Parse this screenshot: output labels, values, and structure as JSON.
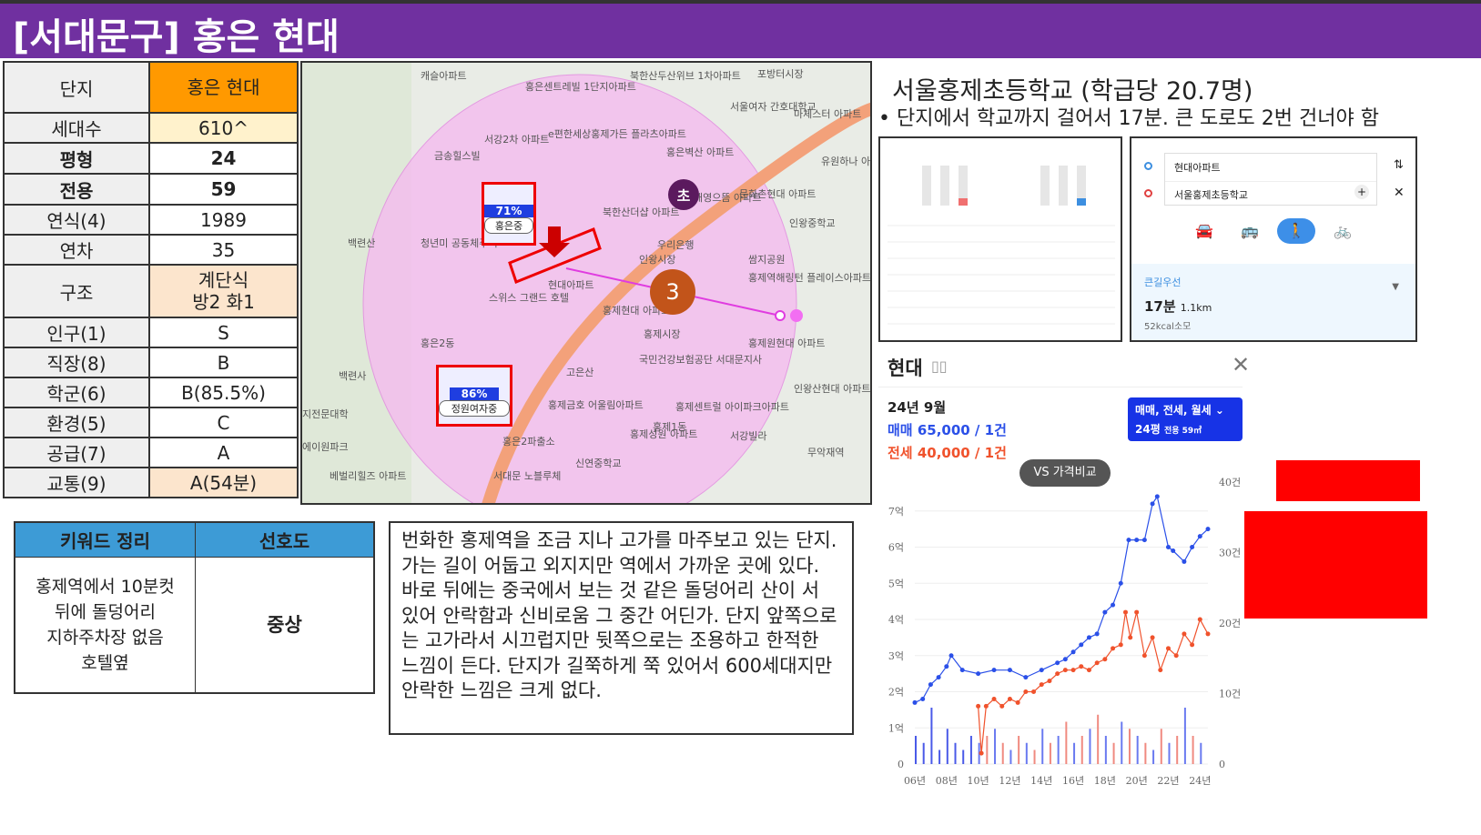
{
  "title": "[서대문구] 홍은 현대",
  "info_table": [
    {
      "label": "단지",
      "value": "홍은 현대",
      "bg": "#ff9900"
    },
    {
      "label": "세대수",
      "value": "610^",
      "bg": "#fff2cc"
    },
    {
      "label": "평형",
      "value": "24",
      "bold": true
    },
    {
      "label": "전용",
      "value": "59",
      "bold": true
    },
    {
      "label": "연식(4)",
      "value": "1989"
    },
    {
      "label": "연차",
      "value": "35"
    },
    {
      "label": "구조",
      "value": "계단식\n방2 화1",
      "bg": "#fce5cd"
    },
    {
      "label": "인구(1)",
      "value": "S"
    },
    {
      "label": "직장(8)",
      "value": "B"
    },
    {
      "label": "학군(6)",
      "value": "B(85.5%)"
    },
    {
      "label": "환경(5)",
      "value": "C"
    },
    {
      "label": "공급(7)",
      "value": "A"
    },
    {
      "label": "교통(9)",
      "value": "A(54분)",
      "bg": "#fce5cd"
    }
  ],
  "map": {
    "labels": [
      "캐슬아파트",
      "홍은센트레빌 1단지아파트",
      "북한산두산위브 1차아파트",
      "포방터시장",
      "서울여자 간호대학교",
      "마체스터 아파트",
      "금송힐스빌",
      "서강2차 아파트",
      "e편한세상홍제가든 플라츠아파트",
      "홍은벽산 아파트",
      "유원하나 아파트",
      "백련산",
      "청년미 공동체주택",
      "북한산더샵 아파트",
      "태영으뜸 아파트",
      "문화촌현대 아파트",
      "인왕중학교",
      "현대아파트",
      "스위스 그랜드 호텔",
      "우리은행",
      "인왕시장",
      "쌈지공원",
      "홍제역해링턴 플레이스아파트",
      "홍제현대 아파트",
      "홍제시장",
      "홍은2동",
      "홍제원현대 아파트",
      "국민건강보험공단 서대문지사",
      "고은산",
      "백련사",
      "인왕산현대 아파트",
      "홍제금호 어울림아파트",
      "홍제센트럴 아이파크아파트",
      "홍제성원 아파트",
      "홍제1동",
      "서강빌라",
      "무악재역",
      "홍은2파출소",
      "신연중학교",
      "서대문 노블루체",
      "베벌리힐즈 아파트",
      "지전문대학",
      "에이원파크"
    ],
    "school_markers": [
      {
        "pct": "71%",
        "name": "홍은중"
      },
      {
        "pct": "86%",
        "name": "정원여자중"
      }
    ],
    "elementary_marker": "초",
    "cluster_count": "3"
  },
  "keywords": {
    "header_left": "키워드 정리",
    "header_right": "선호도",
    "content": "홍제역에서 10분컷\n뒤에 돌덩어리\n지하주차장 없음\n호텔옆",
    "preference": "중상"
  },
  "description": "번화한 홍제역을 조금 지나 고가를 마주보고 있는 단지. 가는 길이 어둡고 외지지만 역에서 가까운 곳에 있다. 바로 뒤에는 중국에서 보는 것 같은 돌덩어리 산이 서 있어 안락함과 신비로움 그 중간 어딘가. 단지 앞쪽으로는 고가라서 시끄럽지만 뒷쪽으로는 조용하고 한적한 느낌이 든다. 단지가 길쭉하게 쭉 있어서 600세대지만 안락한 느낌은 크게 없다.",
  "school": {
    "title": "서울홍제초등학교 (학급당 20.7명)",
    "note": "단지에서 학교까지 걸어서 17분. 큰 도로도 2번 건너야 함"
  },
  "route": {
    "from": "현대아파트",
    "to": "서울홍제초등학교",
    "option": "큰길우선",
    "time": "17분",
    "distance": "1.1km",
    "kcal": "52kcal소모",
    "active_mode": "walk"
  },
  "price_panel": {
    "name": "현대",
    "date": "24년 9월",
    "sale": "매매 65,000 / 1건",
    "jeonse": "전세 40,000 / 1건",
    "filter": "매매, 전세, 월세",
    "size": "24평",
    "area": "전용 59㎡",
    "compare": "VS 가격비교",
    "sale_color": "#2b50e8",
    "jeonse_color": "#f0522c"
  },
  "chart_data": {
    "type": "line",
    "x_ticks": [
      "06년",
      "08년",
      "10년",
      "12년",
      "14년",
      "16년",
      "18년",
      "20년",
      "22년",
      "24년"
    ],
    "y_ticks": [
      "0",
      "1억",
      "2억",
      "3억",
      "4억",
      "5억",
      "6억",
      "7억"
    ],
    "y2_ticks": [
      "0",
      "10건",
      "20건",
      "30건",
      "40건"
    ],
    "ylim": [
      0,
      7.8
    ],
    "y2lim": [
      0,
      40
    ],
    "series": [
      {
        "x": [
          2006,
          2006.5,
          2007,
          2007.5,
          2008,
          2008.3,
          2009,
          2010,
          2011,
          2012,
          2013,
          2014,
          2015,
          2015.5,
          2016,
          2016.5,
          2017,
          2017.5,
          2018,
          2018.5,
          2019,
          2019.5,
          2020,
          2020.5,
          2021,
          2021.3,
          2022,
          2022.3,
          2023,
          2023.5,
          2024,
          2024.5
        ],
        "y": [
          1.7,
          1.8,
          2.2,
          2.4,
          2.7,
          3.0,
          2.6,
          2.5,
          2.6,
          2.6,
          2.4,
          2.6,
          2.8,
          2.9,
          3.1,
          3.3,
          3.5,
          3.6,
          4.2,
          4.4,
          5.0,
          6.2,
          6.2,
          6.2,
          7.2,
          7.4,
          6.0,
          5.9,
          5.6,
          6.0,
          6.3,
          6.5
        ],
        "color": "#2b50e8"
      },
      {
        "x": [
          2010,
          2010.2,
          2010.5,
          2011,
          2011.5,
          2012,
          2012.5,
          2013,
          2013.5,
          2014,
          2014.5,
          2015,
          2015.5,
          2016,
          2016.5,
          2017,
          2017.5,
          2018,
          2018.5,
          2019,
          2019.3,
          2019.6,
          2020,
          2020.5,
          2021,
          2021.5,
          2022,
          2022.5,
          2023,
          2023.5,
          2024,
          2024.5
        ],
        "y": [
          1.6,
          0.3,
          1.6,
          1.8,
          1.6,
          1.8,
          1.7,
          2.0,
          2.0,
          2.2,
          2.3,
          2.5,
          2.6,
          2.6,
          2.7,
          2.6,
          2.8,
          2.9,
          3.2,
          3.3,
          4.2,
          3.5,
          4.2,
          3.0,
          3.5,
          2.6,
          3.2,
          3.0,
          3.6,
          3.3,
          4.0,
          3.6
        ],
        "color": "#f0522c"
      }
    ],
    "volume": {
      "x": [
        2006,
        2006.5,
        2007,
        2007.5,
        2008,
        2008.5,
        2009,
        2009.5,
        2010,
        2010.5,
        2011,
        2011.5,
        2012,
        2012.5,
        2013,
        2013.5,
        2014,
        2014.5,
        2015,
        2015.5,
        2016,
        2016.5,
        2017,
        2017.5,
        2018,
        2018.5,
        2019,
        2019.5,
        2020,
        2020.5,
        2021,
        2021.5,
        2022,
        2022.5,
        2023,
        2023.5,
        2024
      ],
      "y": [
        4,
        3,
        8,
        2,
        5,
        3,
        2,
        4,
        3,
        4,
        5,
        3,
        2,
        4,
        3,
        2,
        5,
        3,
        4,
        6,
        3,
        4,
        5,
        7,
        4,
        3,
        6,
        5,
        4,
        3,
        2,
        5,
        3,
        4,
        8,
        4,
        3
      ]
    }
  }
}
